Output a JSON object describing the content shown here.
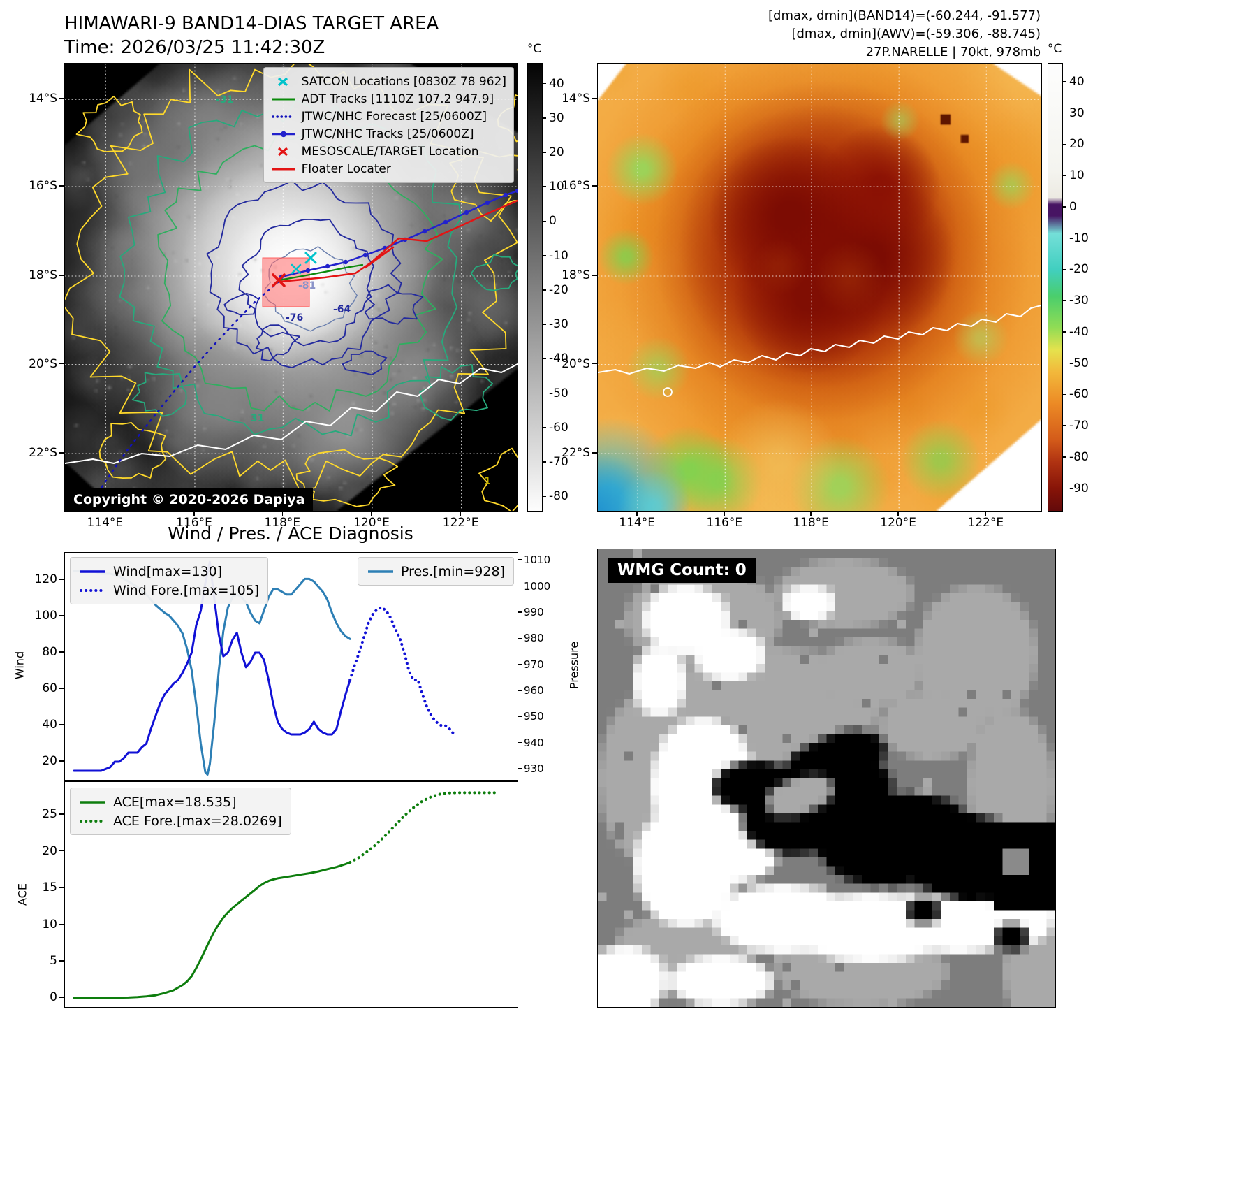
{
  "band14": {
    "title": "HIMAWARI-9 BAND14-DIAS TARGET AREA",
    "time": "Time: 2026/03/25 11:42:30Z",
    "legend": [
      {
        "label": "SATCON Locations [0830Z 78 962]",
        "marker": "x",
        "color": "#00c3cb"
      },
      {
        "label": "ADT Tracks [1110Z 107.2 947.9]",
        "marker": "line",
        "color": "#0a8a0a"
      },
      {
        "label": "JTWC/NHC Forecast [25/0600Z]",
        "marker": "dotted",
        "color": "#1111bb"
      },
      {
        "label": "JTWC/NHC Tracks [25/0600Z]",
        "marker": "line-dot",
        "color": "#2222cc"
      },
      {
        "label": "MESOSCALE/TARGET Location",
        "marker": "x",
        "color": "#e31414"
      },
      {
        "label": "Floater Locater",
        "marker": "line",
        "color": "#e31414"
      }
    ],
    "copyright": "Copyright © 2020-2026 Dapiya",
    "lat_ticks": [
      "14°S",
      "16°S",
      "18°S",
      "20°S",
      "22°S"
    ],
    "lon_ticks": [
      "114°E",
      "116°E",
      "118°E",
      "120°E",
      "122°E"
    ],
    "colorbar": {
      "unit": "°C",
      "ticks": [
        40,
        30,
        20,
        10,
        0,
        -10,
        -20,
        -30,
        -40,
        -50,
        -60,
        -70,
        -80
      ]
    },
    "contour_labels": [
      "-31",
      "-81",
      "-64",
      "-76",
      "31",
      "1"
    ]
  },
  "awv": {
    "info_lines": [
      "[dmax, dmin](BAND14)=(-60.244, -91.577)",
      "[dmax, dmin](AWV)=(-59.306, -88.745)",
      "27P.NARELLE | 70kt, 978mb"
    ],
    "lat_ticks": [
      "14°S",
      "16°S",
      "18°S",
      "20°S",
      "22°S"
    ],
    "lon_ticks": [
      "114°E",
      "116°E",
      "118°E",
      "120°E",
      "122°E"
    ],
    "colorbar": {
      "unit": "°C",
      "ticks": [
        40,
        30,
        20,
        10,
        0,
        -10,
        -20,
        -30,
        -40,
        -50,
        -60,
        -70,
        -80,
        -90
      ]
    }
  },
  "wmg": {
    "label": "WMG Count: 0"
  },
  "colors": {
    "wind_line": "#1111d6",
    "pressure_line": "#2d7fb5",
    "ace_line": "#0d7d0d",
    "contour_yellow": "#ffd92b",
    "contour_teal": "#27a97c",
    "contour_green": "#2fae5f",
    "contour_navy": "#232a9e",
    "track_blue": "#2222cc",
    "track_red": "#e31414",
    "target_box_fill": "#ff6969"
  },
  "chart_data": [
    {
      "type": "line",
      "title": "Wind / Pres. / ACE Diagnosis",
      "x_range": [
        0,
        100
      ],
      "grid": false,
      "left_axis": {
        "label": "Wind",
        "range": [
          10,
          135
        ],
        "ticks": [
          20,
          40,
          60,
          80,
          100,
          120
        ]
      },
      "right_axis": {
        "label": "Pressure",
        "range": [
          926,
          1013
        ],
        "ticks": [
          930,
          940,
          950,
          960,
          970,
          980,
          990,
          1000,
          1010
        ]
      },
      "series": [
        {
          "name": "Wind[max=130]",
          "axis": "left",
          "style": "solid",
          "color": "#1111d6",
          "x": [
            2,
            4,
            6,
            8,
            10,
            11,
            12,
            13,
            14,
            15,
            16,
            17,
            18,
            19,
            20,
            21,
            22,
            23,
            24,
            25,
            26,
            27,
            28,
            29,
            30,
            31,
            32,
            33,
            34,
            35,
            36,
            37,
            38,
            39,
            40,
            41,
            42,
            43,
            44,
            45,
            46,
            47,
            48,
            49,
            50,
            51,
            52,
            53,
            54,
            55,
            56,
            57,
            58,
            59,
            60,
            61,
            62,
            63
          ],
          "y": [
            15,
            15,
            15,
            15,
            17,
            20,
            20,
            22,
            25,
            25,
            25,
            28,
            30,
            38,
            45,
            52,
            57,
            60,
            63,
            65,
            69,
            74,
            80,
            95,
            103,
            118,
            130,
            110,
            90,
            78,
            80,
            87,
            91,
            80,
            72,
            75,
            80,
            80,
            76,
            65,
            52,
            42,
            38,
            36,
            35,
            35,
            35,
            36,
            38,
            42,
            38,
            36,
            35,
            35,
            38,
            48,
            57,
            65
          ]
        },
        {
          "name": "Wind Fore.[max=105]",
          "axis": "left",
          "style": "dotted",
          "color": "#1111d6",
          "x": [
            63,
            64,
            65,
            66,
            67,
            68,
            69,
            70,
            71,
            72,
            73,
            74,
            75,
            76,
            77,
            78,
            79,
            80,
            81,
            82,
            83,
            84,
            85,
            86
          ],
          "y": [
            65,
            73,
            80,
            88,
            96,
            101,
            104,
            105,
            103,
            99,
            93,
            88,
            80,
            70,
            65,
            65,
            57,
            50,
            45,
            42,
            40,
            40,
            38,
            35
          ]
        },
        {
          "name": "Pres.[min=928]",
          "axis": "right",
          "style": "solid",
          "color": "#2d7fb5",
          "x": [
            2,
            4,
            6,
            8,
            10,
            12,
            14,
            16,
            18,
            20,
            22,
            23,
            24,
            25,
            26,
            27,
            28,
            29,
            30,
            31,
            31.5,
            32,
            33,
            34,
            35,
            36,
            37,
            38,
            39,
            40,
            41,
            42,
            43,
            44,
            45,
            46,
            47,
            48,
            49,
            50,
            51,
            52,
            53,
            54,
            55,
            56,
            57,
            58,
            59,
            60,
            61,
            62,
            63
          ],
          "y": [
            1006,
            1006,
            1006,
            1005,
            1005,
            1004,
            1002,
            1000,
            997,
            993,
            990,
            989,
            987,
            985,
            982,
            976,
            968,
            955,
            940,
            929,
            928,
            932,
            948,
            968,
            983,
            992,
            996,
            997,
            996,
            994,
            990,
            987,
            986,
            991,
            996,
            999,
            999,
            998,
            997,
            997,
            999,
            1001,
            1003,
            1003,
            1002,
            1000,
            998,
            995,
            990,
            986,
            983,
            981,
            980
          ]
        }
      ]
    },
    {
      "type": "line",
      "title": "",
      "x_range": [
        0,
        100
      ],
      "grid": false,
      "left_axis": {
        "label": "ACE",
        "range": [
          -1.2,
          29.5
        ],
        "ticks": [
          0,
          5,
          10,
          15,
          20,
          25
        ]
      },
      "series": [
        {
          "name": "ACE[max=18.535]",
          "axis": "left",
          "style": "solid",
          "color": "#0d7d0d",
          "x": [
            2,
            6,
            10,
            14,
            16,
            18,
            20,
            22,
            24,
            26,
            27,
            28,
            29,
            30,
            31,
            32,
            33,
            34,
            35,
            36,
            37,
            38,
            39,
            40,
            41,
            42,
            43,
            44,
            45,
            46,
            47,
            48,
            49,
            50,
            51,
            52,
            54,
            56,
            58,
            60,
            61,
            62,
            63
          ],
          "y": [
            0.05,
            0.05,
            0.05,
            0.1,
            0.15,
            0.25,
            0.4,
            0.7,
            1.1,
            1.8,
            2.3,
            3.0,
            4.1,
            5.3,
            6.6,
            7.9,
            9.1,
            10.1,
            11.0,
            11.7,
            12.3,
            12.8,
            13.3,
            13.8,
            14.3,
            14.8,
            15.3,
            15.7,
            16.0,
            16.2,
            16.35,
            16.45,
            16.55,
            16.65,
            16.75,
            16.85,
            17.05,
            17.3,
            17.6,
            17.9,
            18.1,
            18.3,
            18.535
          ]
        },
        {
          "name": "ACE Fore.[max=28.0269]",
          "axis": "left",
          "style": "dotted",
          "color": "#0d7d0d",
          "x": [
            63,
            65,
            67,
            69,
            71,
            73,
            75,
            77,
            79,
            81,
            83,
            85,
            87,
            90,
            93,
            95
          ],
          "y": [
            18.535,
            19.2,
            20.1,
            21.1,
            22.3,
            23.6,
            24.9,
            26.0,
            26.9,
            27.5,
            27.85,
            28.0,
            28.027,
            28.027,
            28.027,
            28.027
          ]
        }
      ]
    }
  ]
}
